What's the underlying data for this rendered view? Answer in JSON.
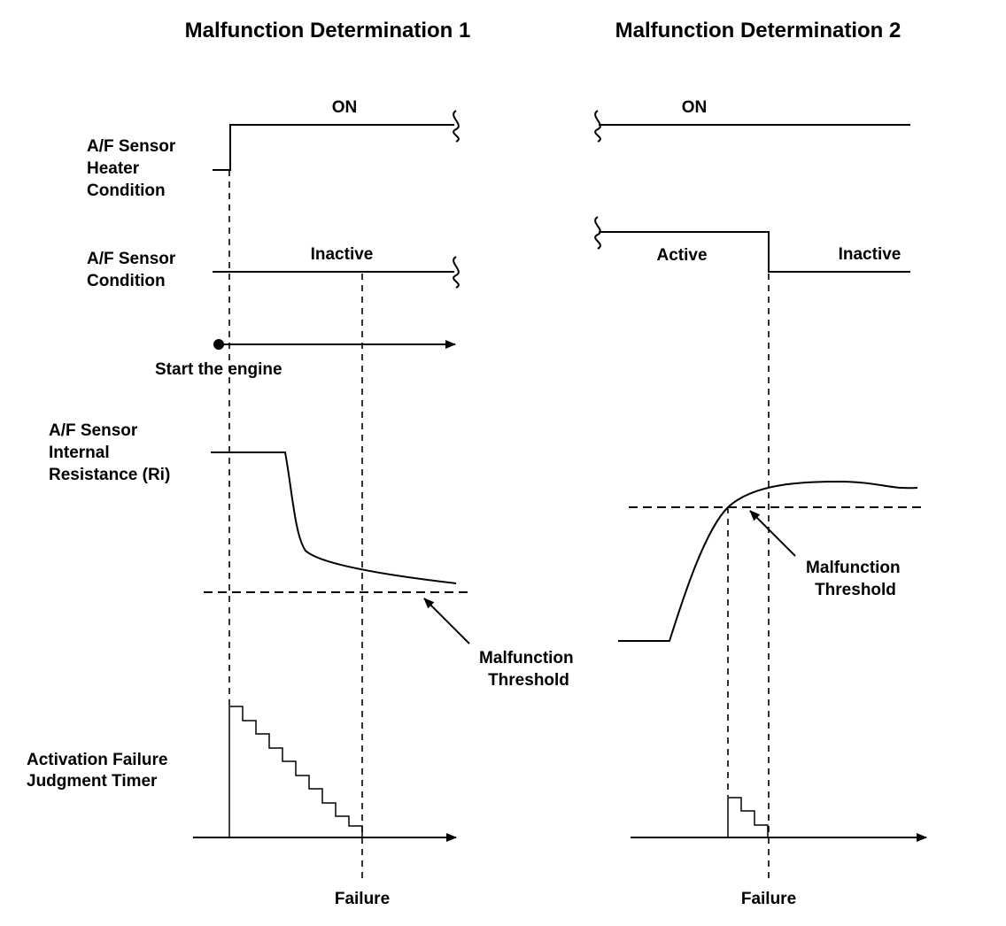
{
  "titles": {
    "left": "Malfunction Determination 1",
    "right": "Malfunction Determination 2"
  },
  "labels": {
    "heater_condition": [
      "A/F Sensor",
      "Heater",
      "Condition"
    ],
    "sensor_condition": [
      "A/F Sensor",
      "Condition"
    ],
    "internal_resistance": [
      "A/F Sensor",
      "Internal",
      "Resistance (Ri)"
    ],
    "judgment_timer": [
      "Activation Failure",
      "Judgment Timer"
    ]
  },
  "states": {
    "heater_on_left": "ON",
    "heater_on_right": "ON",
    "inactive_left": "Inactive",
    "active_right": "Active",
    "inactive_right": "Inactive"
  },
  "annotations": {
    "start_engine": "Start the engine",
    "threshold_left": [
      "Malfunction",
      "Threshold"
    ],
    "threshold_right": [
      "Malfunction",
      "Threshold"
    ],
    "failure_left": "Failure",
    "failure_right": "Failure"
  }
}
